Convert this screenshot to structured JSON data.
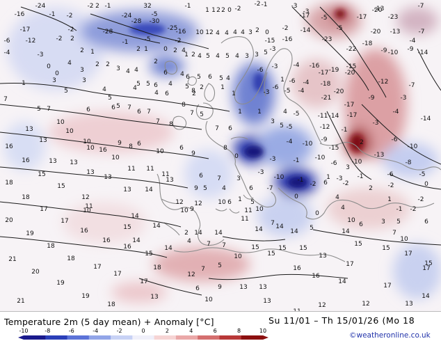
{
  "map": {
    "numbers": [
      [
        "-24",
        58,
        8
      ],
      [
        "-2",
        130,
        8
      ],
      [
        "2",
        140,
        8
      ],
      [
        "-1",
        155,
        8
      ],
      [
        "32",
        212,
        8
      ],
      [
        "-1",
        270,
        8
      ],
      [
        "1",
        298,
        14
      ],
      [
        "1",
        307,
        14
      ],
      [
        "2",
        314,
        14
      ],
      [
        "2",
        321,
        14
      ],
      [
        "0",
        330,
        14
      ],
      [
        "-2",
        342,
        12
      ],
      [
        "-2",
        370,
        5
      ],
      [
        "-1",
        380,
        6
      ],
      [
        "-3",
        423,
        8
      ],
      [
        "-3",
        440,
        16
      ],
      [
        "-13",
        545,
        12
      ],
      [
        "-20",
        542,
        14
      ],
      [
        "-7",
        605,
        8
      ],
      [
        "-16",
        28,
        20
      ],
      [
        "-1",
        75,
        20
      ],
      [
        "-2",
        100,
        22
      ],
      [
        "-24",
        182,
        22
      ],
      [
        "-5",
        222,
        20
      ],
      [
        "-17",
        438,
        22
      ],
      [
        "-5",
        466,
        25
      ],
      [
        "-17",
        520,
        24
      ],
      [
        "-23",
        565,
        24
      ],
      [
        "-17",
        36,
        42
      ],
      [
        "-2",
        102,
        42
      ],
      [
        "-28",
        155,
        45
      ],
      [
        "-28",
        196,
        30
      ],
      [
        "-30",
        222,
        30
      ],
      [
        "-25",
        248,
        40
      ],
      [
        "-16",
        260,
        45
      ],
      [
        "10",
        287,
        46
      ],
      [
        "12",
        301,
        46
      ],
      [
        "4",
        313,
        47
      ],
      [
        "4",
        326,
        47
      ],
      [
        "4",
        338,
        46
      ],
      [
        "4",
        349,
        46
      ],
      [
        "3",
        360,
        46
      ],
      [
        "2",
        370,
        43
      ],
      [
        "0",
        384,
        46
      ],
      [
        "-2",
        410,
        40
      ],
      [
        "-14",
        439,
        43
      ],
      [
        "-5",
        488,
        40
      ],
      [
        "-20",
        540,
        45
      ],
      [
        "-13",
        568,
        45
      ],
      [
        "-7",
        606,
        45
      ],
      [
        "-6",
        10,
        58
      ],
      [
        "-12",
        44,
        58
      ],
      [
        "-2",
        85,
        55
      ],
      [
        "2",
        104,
        55
      ],
      [
        "-1",
        180,
        60
      ],
      [
        "-5",
        212,
        56
      ],
      [
        "-2",
        256,
        58
      ],
      [
        "-15",
        388,
        58
      ],
      [
        "-16",
        413,
        56
      ],
      [
        "-23",
        470,
        56
      ],
      [
        "-18",
        528,
        62
      ],
      [
        "-4",
        593,
        58
      ],
      [
        "-4",
        10,
        75
      ],
      [
        "-3",
        58,
        78
      ],
      [
        "2",
        118,
        72
      ],
      [
        "1",
        133,
        74
      ],
      [
        "2",
        199,
        70
      ],
      [
        "1",
        210,
        70
      ],
      [
        "0",
        238,
        70
      ],
      [
        "2",
        252,
        72
      ],
      [
        "4",
        264,
        72
      ],
      [
        "1",
        268,
        78
      ],
      [
        "2",
        278,
        78
      ],
      [
        "4",
        287,
        80
      ],
      [
        "5",
        299,
        80
      ],
      [
        "4",
        313,
        80
      ],
      [
        "5",
        327,
        80
      ],
      [
        "4",
        341,
        80
      ],
      [
        "3",
        355,
        80
      ],
      [
        "3",
        369,
        78
      ],
      [
        "5",
        382,
        75
      ],
      [
        "-3",
        392,
        70
      ],
      [
        "-22",
        505,
        70
      ],
      [
        "-9",
        552,
        72
      ],
      [
        "-10",
        565,
        75
      ],
      [
        "-9",
        590,
        70
      ],
      [
        "-14",
        608,
        75
      ],
      [
        "0",
        70,
        95
      ],
      [
        "0",
        82,
        105
      ],
      [
        "4",
        100,
        90
      ],
      [
        "3",
        118,
        100
      ],
      [
        "2",
        140,
        92
      ],
      [
        "2",
        155,
        92
      ],
      [
        "3",
        170,
        98
      ],
      [
        "4",
        184,
        102
      ],
      [
        "4",
        196,
        100
      ],
      [
        "2",
        224,
        88
      ],
      [
        "6",
        238,
        104
      ],
      [
        "4",
        262,
        106
      ],
      [
        "6",
        270,
        110
      ],
      [
        "5",
        286,
        110
      ],
      [
        "6",
        302,
        110
      ],
      [
        "5",
        318,
        112
      ],
      [
        "4",
        328,
        112
      ],
      [
        "-6",
        374,
        100
      ],
      [
        "-3",
        395,
        95
      ],
      [
        "-4",
        426,
        93
      ],
      [
        "-16",
        452,
        94
      ],
      [
        "-17",
        465,
        104
      ],
      [
        "-19",
        480,
        100
      ],
      [
        "-15",
        505,
        95
      ],
      [
        "-20",
        503,
        104
      ],
      [
        "1",
        34,
        119
      ],
      [
        "3",
        78,
        115
      ],
      [
        "3",
        121,
        115
      ],
      [
        "4",
        150,
        128
      ],
      [
        "5",
        199,
        120
      ],
      [
        "4",
        194,
        126
      ],
      [
        "5",
        213,
        120
      ],
      [
        "6",
        224,
        122
      ],
      [
        "4",
        245,
        120
      ],
      [
        "5",
        269,
        124
      ],
      [
        "8",
        278,
        130
      ],
      [
        "2",
        290,
        125
      ],
      [
        "1",
        320,
        125
      ],
      [
        "1",
        406,
        114
      ],
      [
        "-6",
        420,
        116
      ],
      [
        "-4",
        440,
        118
      ],
      [
        "-6",
        396,
        125
      ],
      [
        "-18",
        468,
        120
      ],
      [
        "-20",
        487,
        131
      ],
      [
        "-12",
        551,
        117
      ],
      [
        "-7",
        592,
        122
      ],
      [
        "7",
        8,
        142
      ],
      [
        "5",
        95,
        130
      ],
      [
        "5",
        158,
        140
      ],
      [
        "5",
        170,
        152
      ],
      [
        "4",
        225,
        133
      ],
      [
        "6",
        240,
        134
      ],
      [
        "2",
        279,
        134
      ],
      [
        "1",
        336,
        134
      ],
      [
        "-3",
        383,
        132
      ],
      [
        "-5",
        413,
        130
      ],
      [
        "-4",
        433,
        130
      ],
      [
        "-21",
        469,
        140
      ],
      [
        "-17",
        502,
        150
      ],
      [
        "-9",
        534,
        140
      ],
      [
        "-3",
        580,
        140
      ],
      [
        "5",
        56,
        156
      ],
      [
        "7",
        70,
        156
      ],
      [
        "6",
        127,
        157
      ],
      [
        "6",
        163,
        154
      ],
      [
        "7",
        186,
        154
      ],
      [
        "6",
        200,
        160
      ],
      [
        "7",
        214,
        160
      ],
      [
        "8",
        264,
        150
      ],
      [
        "7",
        276,
        162
      ],
      [
        "5",
        290,
        164
      ],
      [
        "1",
        345,
        160
      ],
      [
        "1",
        373,
        160
      ],
      [
        "4",
        410,
        160
      ],
      [
        "-5",
        426,
        163
      ],
      [
        "-11",
        464,
        166
      ],
      [
        "-14",
        480,
        166
      ],
      [
        "-17",
        506,
        165
      ],
      [
        "-4",
        569,
        160
      ],
      [
        "13",
        42,
        185
      ],
      [
        "10",
        87,
        175
      ],
      [
        "10",
        100,
        188
      ],
      [
        "7",
        227,
        174
      ],
      [
        "8",
        246,
        178
      ],
      [
        "7",
        312,
        184
      ],
      [
        "6",
        331,
        184
      ],
      [
        "3",
        392,
        174
      ],
      [
        "5",
        405,
        180
      ],
      [
        "-5",
        416,
        182
      ],
      [
        "-12",
        467,
        182
      ],
      [
        "-1",
        495,
        186
      ],
      [
        "-3",
        540,
        176
      ],
      [
        "-14",
        612,
        170
      ],
      [
        "16",
        13,
        210
      ],
      [
        "13",
        62,
        201
      ],
      [
        "10",
        125,
        203
      ],
      [
        "10",
        130,
        212
      ],
      [
        "9",
        172,
        205
      ],
      [
        "8",
        188,
        210
      ],
      [
        "6",
        200,
        206
      ],
      [
        "10",
        230,
        217
      ],
      [
        "6",
        261,
        212
      ],
      [
        "9",
        278,
        220
      ],
      [
        "8",
        324,
        212
      ],
      [
        "-4",
        416,
        203
      ],
      [
        "-10",
        442,
        206
      ],
      [
        "-9",
        466,
        200
      ],
      [
        "-15",
        480,
        212
      ],
      [
        "2",
        520,
        204
      ],
      [
        "-6",
        567,
        200
      ],
      [
        "-10",
        593,
        210
      ],
      [
        "16",
        37,
        230
      ],
      [
        "13",
        76,
        231
      ],
      [
        "13",
        106,
        233
      ],
      [
        "16",
        148,
        215
      ],
      [
        "10",
        166,
        226
      ],
      [
        "11",
        189,
        242
      ],
      [
        "11",
        216,
        242
      ],
      [
        "11",
        238,
        250
      ],
      [
        "6",
        289,
        252
      ],
      [
        "0",
        340,
        224
      ],
      [
        "-3",
        392,
        228
      ],
      [
        "-1",
        426,
        230
      ],
      [
        "-10",
        460,
        226
      ],
      [
        "-6",
        480,
        234
      ],
      [
        "3",
        500,
        240
      ],
      [
        "-10",
        513,
        232
      ],
      [
        "-13",
        545,
        222
      ],
      [
        "-8",
        587,
        233
      ],
      [
        "18",
        13,
        262
      ],
      [
        "15",
        60,
        250
      ],
      [
        "13",
        130,
        247
      ],
      [
        "13",
        155,
        254
      ],
      [
        "13",
        244,
        258
      ],
      [
        "7",
        315,
        256
      ],
      [
        "3",
        343,
        256
      ],
      [
        "-3",
        375,
        247
      ],
      [
        "-10",
        401,
        254
      ],
      [
        "-1",
        432,
        258
      ],
      [
        "1",
        472,
        254
      ],
      [
        "-3",
        488,
        256
      ],
      [
        "-1",
        518,
        253
      ],
      [
        "-6",
        561,
        250
      ],
      [
        "-5",
        607,
        250
      ],
      [
        "15",
        88,
        267
      ],
      [
        "13",
        183,
        272
      ],
      [
        "14",
        214,
        272
      ],
      [
        "9",
        282,
        270
      ],
      [
        "5",
        295,
        270
      ],
      [
        "4",
        322,
        270
      ],
      [
        "6",
        361,
        270
      ],
      [
        "-7",
        388,
        270
      ],
      [
        "-2",
        450,
        264
      ],
      [
        "6",
        468,
        262
      ],
      [
        "-2",
        497,
        263
      ],
      [
        "2",
        533,
        270
      ],
      [
        "-2",
        562,
        266
      ],
      [
        "0",
        613,
        264
      ],
      [
        "18",
        37,
        283
      ],
      [
        "12",
        123,
        283
      ],
      [
        "11",
        128,
        296
      ],
      [
        "12",
        258,
        290
      ],
      [
        "12",
        285,
        292
      ],
      [
        "10",
        319,
        290
      ],
      [
        "6",
        330,
        290
      ],
      [
        "1",
        345,
        286
      ],
      [
        "5",
        363,
        290
      ],
      [
        "0",
        426,
        282
      ],
      [
        "4",
        485,
        283
      ],
      [
        "1",
        560,
        286
      ],
      [
        "-2",
        605,
        286
      ],
      [
        "17",
        63,
        300
      ],
      [
        "10",
        125,
        302
      ],
      [
        "14",
        194,
        310
      ],
      [
        "10",
        265,
        302
      ],
      [
        "9",
        276,
        300
      ],
      [
        "11",
        357,
        302
      ],
      [
        "10",
        373,
        300
      ],
      [
        "0",
        456,
        306
      ],
      [
        "4",
        493,
        298
      ],
      [
        "-1",
        574,
        300
      ],
      [
        "-2",
        594,
        300
      ],
      [
        "20",
        13,
        316
      ],
      [
        "17",
        93,
        317
      ],
      [
        "14",
        225,
        324
      ],
      [
        "15",
        183,
        326
      ],
      [
        "2",
        268,
        334
      ],
      [
        "11",
        352,
        314
      ],
      [
        "7",
        392,
        320
      ],
      [
        "10",
        505,
        316
      ],
      [
        "6",
        519,
        322
      ],
      [
        "3",
        551,
        318
      ],
      [
        "5",
        573,
        318
      ],
      [
        "6",
        613,
        318
      ],
      [
        "19",
        43,
        335
      ],
      [
        "16",
        121,
        331
      ],
      [
        "14",
        196,
        345
      ],
      [
        "14",
        285,
        334
      ],
      [
        "14",
        314,
        334
      ],
      [
        "14",
        372,
        329
      ],
      [
        "14",
        402,
        325
      ],
      [
        "14",
        423,
        332
      ],
      [
        "5",
        448,
        327
      ],
      [
        "14",
        497,
        332
      ],
      [
        "7",
        567,
        334
      ],
      [
        "18",
        73,
        353
      ],
      [
        "16",
        153,
        345
      ],
      [
        "16",
        183,
        354
      ],
      [
        "14",
        242,
        356
      ],
      [
        "4",
        272,
        346
      ],
      [
        "7",
        300,
        350
      ],
      [
        "7",
        322,
        352
      ],
      [
        "15",
        367,
        355
      ],
      [
        "15",
        406,
        356
      ],
      [
        "15",
        436,
        356
      ],
      [
        "15",
        515,
        350
      ],
      [
        "15",
        555,
        356
      ],
      [
        "10",
        581,
        343
      ],
      [
        "21",
        18,
        372
      ],
      [
        "18",
        102,
        371
      ],
      [
        "15",
        214,
        364
      ],
      [
        "10",
        342,
        368
      ],
      [
        "15",
        390,
        364
      ],
      [
        "13",
        464,
        367
      ],
      [
        "17",
        587,
        364
      ],
      [
        "15",
        616,
        378
      ],
      [
        "20",
        51,
        390
      ],
      [
        "17",
        140,
        383
      ],
      [
        "17",
        169,
        393
      ],
      [
        "18",
        226,
        384
      ],
      [
        "12",
        275,
        394
      ],
      [
        "7",
        292,
        386
      ],
      [
        "5",
        316,
        381
      ],
      [
        "16",
        427,
        385
      ],
      [
        "17",
        503,
        379
      ],
      [
        "17",
        613,
        385
      ],
      [
        "19",
        87,
        406
      ],
      [
        "17",
        207,
        404
      ],
      [
        "6",
        284,
        414
      ],
      [
        "9",
        316,
        412
      ],
      [
        "13",
        350,
        412
      ],
      [
        "13",
        378,
        412
      ],
      [
        "16",
        454,
        396
      ],
      [
        "14",
        492,
        404
      ],
      [
        "17",
        557,
        410
      ],
      [
        "21",
        30,
        432
      ],
      [
        "19",
        123,
        425
      ],
      [
        "18",
        160,
        437
      ],
      [
        "13",
        222,
        426
      ],
      [
        "10",
        300,
        430
      ],
      [
        "13",
        384,
        432
      ],
      [
        "12",
        463,
        438
      ],
      [
        "12",
        526,
        436
      ],
      [
        "11",
        427,
        447
      ],
      [
        "13",
        588,
        436
      ],
      [
        "14",
        612,
        425
      ]
    ]
  },
  "legend": {
    "title": "Temperature 2m (5 day mean) + Anomaly [°C]",
    "period": "Su 11/01 – Th 15/01/26 (Mo 18",
    "credit": "©weatheronline.co.uk",
    "ticks": [
      "-10",
      "-8",
      "-6",
      "-4",
      "-2",
      "0",
      "2",
      "4",
      "6",
      "8",
      "10"
    ],
    "colors": [
      "#1a1a8c",
      "#2b3fb8",
      "#5c73d8",
      "#92a5e8",
      "#c8d2f5",
      "#f0f0fa",
      "#f6d4d4",
      "#eaa8a8",
      "#d46f6f",
      "#b83838",
      "#8c1010"
    ]
  }
}
